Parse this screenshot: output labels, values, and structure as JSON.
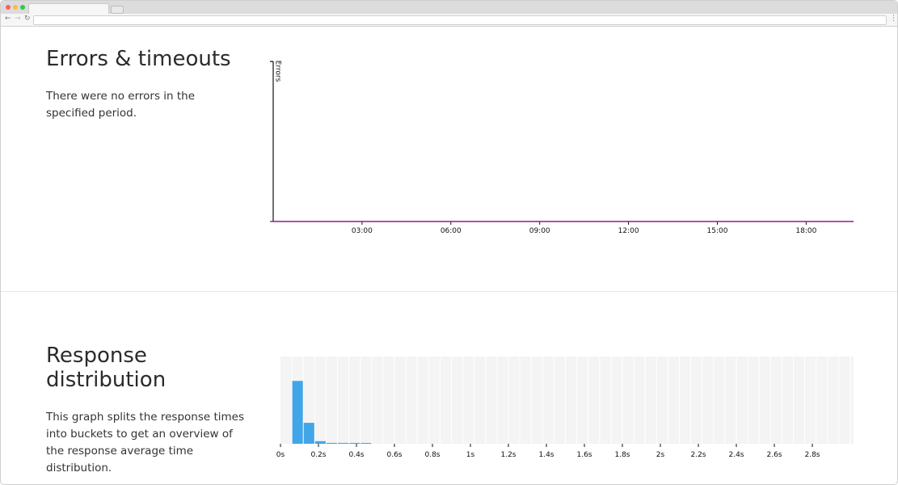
{
  "sections": [
    {
      "title": "Errors & timeouts",
      "description": "There were no errors in the specified period."
    },
    {
      "title": "Response distribution",
      "description": "This graph splits the response times into buckets to get an overview of the response average time distribution."
    }
  ],
  "chart_data": [
    {
      "type": "line",
      "y_label": "Errors",
      "x": [
        0,
        19.6
      ],
      "values": [
        0,
        0
      ],
      "color": "#8e1f8a",
      "xlim": [
        0,
        19.6
      ],
      "ylim": [
        0,
        1
      ],
      "xticks": [
        {
          "value": 3,
          "label": "03:00"
        },
        {
          "value": 6,
          "label": "06:00"
        },
        {
          "value": 9,
          "label": "09:00"
        },
        {
          "value": 12,
          "label": "12:00"
        },
        {
          "value": 15,
          "label": "15:00"
        },
        {
          "value": 18,
          "label": "18:00"
        }
      ]
    },
    {
      "type": "histogram",
      "color": "#42a5e8",
      "bins": [
        0,
        0.06,
        0.12,
        0.18,
        0.24,
        0.3,
        0.36,
        0.42,
        0.48,
        0.54,
        0.6,
        0.66,
        0.72,
        0.78,
        0.84,
        0.9,
        0.96,
        1.02,
        1.08,
        1.14,
        1.2,
        1.26,
        1.32,
        1.38,
        1.44,
        1.5,
        1.56,
        1.62,
        1.68,
        1.74,
        1.8,
        1.86,
        1.92,
        1.98,
        2.04,
        2.1,
        2.16,
        2.22,
        2.28,
        2.34,
        2.4,
        2.46,
        2.52,
        2.58,
        2.64,
        2.7,
        2.76,
        2.82,
        2.88,
        2.94,
        3
      ],
      "values": [
        0,
        72,
        24,
        3,
        1,
        1,
        1,
        1,
        0,
        0,
        0,
        0,
        0,
        0,
        0,
        0,
        0,
        0,
        0,
        0,
        0,
        0,
        0,
        0,
        0,
        0,
        0,
        0,
        0,
        0,
        0,
        0,
        0,
        0,
        0,
        0,
        0,
        0,
        0,
        0,
        0,
        0,
        0,
        0,
        0,
        0,
        0,
        0,
        0,
        0
      ],
      "xlim": [
        0,
        3
      ],
      "ylim": [
        0,
        100
      ],
      "xticks": [
        {
          "value": 0,
          "label": "0s"
        },
        {
          "value": 0.2,
          "label": "0.2s"
        },
        {
          "value": 0.4,
          "label": "0.4s"
        },
        {
          "value": 0.6,
          "label": "0.6s"
        },
        {
          "value": 0.8,
          "label": "0.8s"
        },
        {
          "value": 1,
          "label": "1s"
        },
        {
          "value": 1.2,
          "label": "1.2s"
        },
        {
          "value": 1.4,
          "label": "1.4s"
        },
        {
          "value": 1.6,
          "label": "1.6s"
        },
        {
          "value": 1.8,
          "label": "1.8s"
        },
        {
          "value": 2,
          "label": "2s"
        },
        {
          "value": 2.2,
          "label": "2.2s"
        },
        {
          "value": 2.4,
          "label": "2.4s"
        },
        {
          "value": 2.6,
          "label": "2.6s"
        },
        {
          "value": 2.8,
          "label": "2.8s"
        }
      ]
    }
  ]
}
